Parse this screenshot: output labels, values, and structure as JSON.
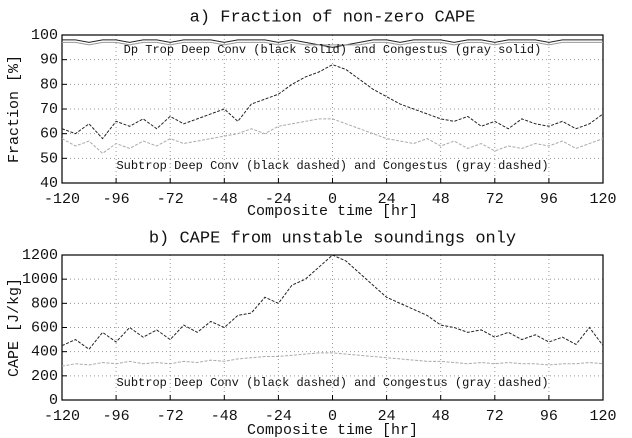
{
  "chart_data": [
    {
      "type": "line",
      "title": "a) Fraction of non-zero CAPE",
      "xlabel": "Composite time [hr]",
      "ylabel": "Fraction [%]",
      "x": [
        -120,
        -114,
        -108,
        -102,
        -96,
        -90,
        -84,
        -78,
        -72,
        -66,
        -60,
        -54,
        -48,
        -42,
        -36,
        -30,
        -24,
        -18,
        -12,
        -6,
        0,
        6,
        12,
        18,
        24,
        30,
        36,
        42,
        48,
        54,
        60,
        66,
        72,
        78,
        84,
        90,
        96,
        102,
        108,
        114,
        120
      ],
      "xlim": [
        -120,
        120
      ],
      "xticks": [
        -120,
        -96,
        -72,
        -48,
        -24,
        0,
        24,
        48,
        72,
        96,
        120
      ],
      "ylim": [
        40,
        100
      ],
      "yticks": [
        40,
        50,
        60,
        70,
        80,
        90,
        100
      ],
      "grid": true,
      "annotations": [
        "Dp Trop Deep Conv (black solid) and Congestus (gray solid)",
        "Subtrop Deep Conv (black dashed) and Congestus (gray dashed)"
      ],
      "series": [
        {
          "color": "#222222",
          "dash": "solid",
          "values": [
            98,
            98,
            97,
            98,
            98,
            97,
            98,
            98,
            97,
            98,
            98,
            98,
            97,
            98,
            98,
            98,
            97,
            98,
            97,
            96,
            95,
            96,
            97,
            98,
            98,
            97,
            98,
            98,
            98,
            97,
            98,
            98,
            97,
            98,
            98,
            98,
            97,
            98,
            98,
            98,
            98
          ]
        },
        {
          "color": "#999999",
          "dash": "solid",
          "values": [
            97,
            97,
            96,
            97,
            97,
            96,
            97,
            97,
            96,
            97,
            97,
            97,
            96,
            97,
            97,
            97,
            96,
            97,
            96,
            96,
            96,
            96,
            96,
            97,
            97,
            96,
            97,
            97,
            97,
            96,
            97,
            97,
            96,
            97,
            97,
            97,
            96,
            97,
            97,
            97,
            97
          ]
        },
        {
          "color": "#222222",
          "dash": "dashed",
          "values": [
            62,
            60,
            64,
            58,
            65,
            63,
            66,
            62,
            67,
            64,
            66,
            68,
            70,
            65,
            72,
            74,
            76,
            80,
            83,
            85,
            88,
            86,
            82,
            78,
            75,
            72,
            70,
            68,
            66,
            65,
            67,
            63,
            65,
            62,
            66,
            64,
            63,
            65,
            62,
            64,
            68
          ]
        },
        {
          "color": "#aaaaaa",
          "dash": "dashed",
          "values": [
            58,
            55,
            57,
            52,
            56,
            54,
            57,
            55,
            58,
            56,
            57,
            58,
            59,
            60,
            62,
            60,
            63,
            64,
            65,
            66,
            66,
            64,
            62,
            60,
            58,
            57,
            56,
            58,
            55,
            57,
            54,
            56,
            53,
            55,
            54,
            56,
            55,
            57,
            54,
            56,
            58
          ]
        }
      ]
    },
    {
      "type": "line",
      "title": "b) CAPE from unstable soundings only",
      "xlabel": "Composite time [hr]",
      "ylabel": "CAPE [J/kg]",
      "x": [
        -120,
        -114,
        -108,
        -102,
        -96,
        -90,
        -84,
        -78,
        -72,
        -66,
        -60,
        -54,
        -48,
        -42,
        -36,
        -30,
        -24,
        -18,
        -12,
        -6,
        0,
        6,
        12,
        18,
        24,
        30,
        36,
        42,
        48,
        54,
        60,
        66,
        72,
        78,
        84,
        90,
        96,
        102,
        108,
        114,
        120
      ],
      "xlim": [
        -120,
        120
      ],
      "xticks": [
        -120,
        -96,
        -72,
        -48,
        -24,
        0,
        24,
        48,
        72,
        96,
        120
      ],
      "ylim": [
        0,
        1200
      ],
      "yticks": [
        0,
        200,
        400,
        600,
        800,
        1000,
        1200
      ],
      "grid": true,
      "annotations": [
        "Subtrop Deep Conv (black dashed) and Congestus (gray dashed)"
      ],
      "series": [
        {
          "color": "#222222",
          "dash": "dashed",
          "values": [
            450,
            500,
            420,
            560,
            480,
            600,
            520,
            580,
            500,
            620,
            560,
            650,
            600,
            700,
            720,
            850,
            800,
            950,
            1000,
            1100,
            1200,
            1150,
            1050,
            950,
            850,
            800,
            750,
            700,
            620,
            600,
            560,
            580,
            520,
            560,
            500,
            540,
            480,
            520,
            460,
            600,
            450
          ]
        },
        {
          "color": "#aaaaaa",
          "dash": "dashed",
          "values": [
            280,
            300,
            290,
            310,
            300,
            320,
            300,
            310,
            300,
            320,
            310,
            330,
            320,
            340,
            350,
            360,
            360,
            370,
            380,
            390,
            390,
            380,
            370,
            360,
            350,
            340,
            330,
            320,
            320,
            310,
            300,
            310,
            300,
            310,
            300,
            300,
            290,
            300,
            300,
            310,
            300
          ]
        }
      ]
    }
  ]
}
